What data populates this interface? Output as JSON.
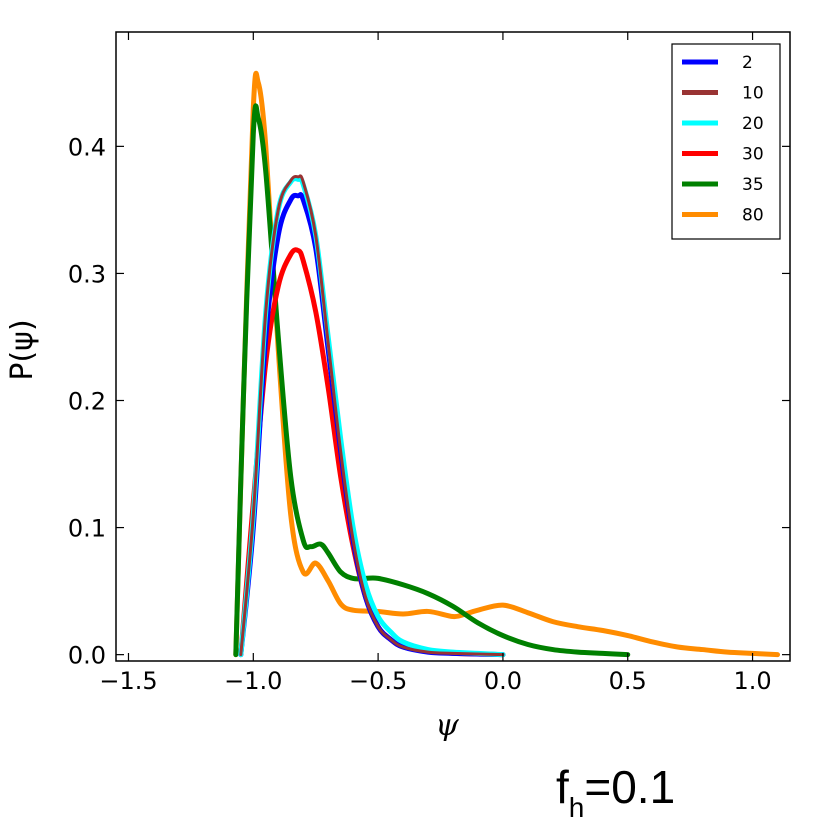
{
  "chart_data": {
    "type": "line",
    "title": "",
    "xlabel": "ψ",
    "ylabel": "P(ψ)",
    "xlim": [
      -1.55,
      1.15
    ],
    "ylim": [
      -0.005,
      0.49
    ],
    "xticks": [
      -1.5,
      -1.0,
      -0.5,
      0.0,
      0.5,
      1.0
    ],
    "xtick_labels": [
      "−1.5",
      "−1.0",
      "−0.5",
      "0.0",
      "0.5",
      "1.0"
    ],
    "yticks": [
      0.0,
      0.1,
      0.2,
      0.3,
      0.4
    ],
    "ytick_labels": [
      "0.0",
      "0.1",
      "0.2",
      "0.3",
      "0.4"
    ],
    "legend_position": "top-right",
    "series": [
      {
        "name": "2",
        "color": "#0000ff",
        "x": [
          -1.05,
          -1.0,
          -0.95,
          -0.9,
          -0.85,
          -0.82,
          -0.8,
          -0.75,
          -0.7,
          -0.65,
          -0.6,
          -0.55,
          -0.5,
          -0.45,
          -0.4,
          -0.3,
          -0.2,
          0.0
        ],
        "y": [
          0.0,
          0.1,
          0.25,
          0.33,
          0.358,
          0.361,
          0.358,
          0.32,
          0.24,
          0.16,
          0.09,
          0.045,
          0.022,
          0.012,
          0.006,
          0.002,
          0.001,
          0.0
        ]
      },
      {
        "name": "10",
        "color": "#993333",
        "x": [
          -1.05,
          -1.0,
          -0.95,
          -0.9,
          -0.85,
          -0.82,
          -0.8,
          -0.75,
          -0.7,
          -0.65,
          -0.6,
          -0.55,
          -0.5,
          -0.45,
          -0.4,
          -0.3,
          -0.2,
          0.0
        ],
        "y": [
          0.0,
          0.11,
          0.27,
          0.35,
          0.373,
          0.376,
          0.372,
          0.33,
          0.245,
          0.16,
          0.09,
          0.045,
          0.022,
          0.012,
          0.006,
          0.002,
          0.001,
          0.0
        ]
      },
      {
        "name": "20",
        "color": "#00ffff",
        "x": [
          -1.05,
          -1.0,
          -0.95,
          -0.9,
          -0.85,
          -0.82,
          -0.8,
          -0.75,
          -0.7,
          -0.65,
          -0.6,
          -0.55,
          -0.5,
          -0.45,
          -0.4,
          -0.3,
          -0.2,
          -0.1,
          0.0
        ],
        "y": [
          0.0,
          0.11,
          0.27,
          0.35,
          0.372,
          0.374,
          0.37,
          0.33,
          0.25,
          0.17,
          0.1,
          0.055,
          0.03,
          0.018,
          0.01,
          0.004,
          0.002,
          0.001,
          0.0
        ]
      },
      {
        "name": "30",
        "color": "#ff0000",
        "x": [
          -1.05,
          -1.0,
          -0.95,
          -0.9,
          -0.85,
          -0.82,
          -0.8,
          -0.75,
          -0.7,
          -0.65,
          -0.6,
          -0.55,
          -0.5,
          -0.45,
          -0.4,
          -0.3,
          -0.2,
          -0.1,
          0.0
        ],
        "y": [
          0.0,
          0.12,
          0.23,
          0.29,
          0.315,
          0.318,
          0.31,
          0.27,
          0.21,
          0.14,
          0.085,
          0.045,
          0.022,
          0.012,
          0.006,
          0.003,
          0.001,
          0.0005,
          0.0
        ]
      },
      {
        "name": "35",
        "color": "#008000",
        "x": [
          -1.07,
          -1.04,
          -1.0,
          -0.98,
          -0.95,
          -0.9,
          -0.85,
          -0.8,
          -0.77,
          -0.73,
          -0.7,
          -0.65,
          -0.6,
          -0.55,
          -0.5,
          -0.4,
          -0.3,
          -0.2,
          -0.1,
          0.0,
          0.1,
          0.2,
          0.3,
          0.4,
          0.5
        ],
        "y": [
          0.0,
          0.2,
          0.41,
          0.422,
          0.38,
          0.25,
          0.14,
          0.09,
          0.085,
          0.087,
          0.08,
          0.065,
          0.06,
          0.06,
          0.06,
          0.055,
          0.048,
          0.038,
          0.025,
          0.015,
          0.008,
          0.004,
          0.002,
          0.001,
          0.0
        ]
      },
      {
        "name": "80",
        "color": "#ff8c00",
        "x": [
          -1.07,
          -1.04,
          -1.0,
          -0.98,
          -0.95,
          -0.9,
          -0.85,
          -0.8,
          -0.75,
          -0.7,
          -0.65,
          -0.6,
          -0.5,
          -0.4,
          -0.3,
          -0.2,
          -0.15,
          -0.1,
          0.0,
          0.1,
          0.2,
          0.3,
          0.4,
          0.5,
          0.6,
          0.7,
          0.8,
          0.9,
          1.0,
          1.1
        ],
        "y": [
          0.0,
          0.2,
          0.43,
          0.45,
          0.4,
          0.24,
          0.11,
          0.065,
          0.072,
          0.058,
          0.04,
          0.035,
          0.034,
          0.032,
          0.034,
          0.03,
          0.032,
          0.035,
          0.039,
          0.033,
          0.026,
          0.022,
          0.019,
          0.015,
          0.01,
          0.006,
          0.004,
          0.002,
          0.001,
          0.0
        ]
      }
    ]
  },
  "annotation": {
    "main": "f",
    "sub": "h",
    "rest": "=0.1"
  }
}
